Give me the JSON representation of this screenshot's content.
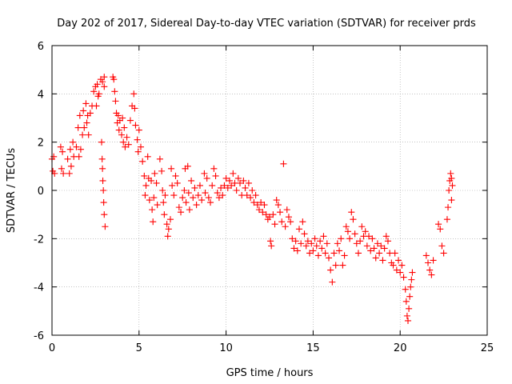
{
  "chart_data": {
    "type": "scatter",
    "title": "Day 202 of 2017, Sidereal Day-to-day VTEC variation (SDTVAR) for receiver prds",
    "xlabel": "GPS time / hours",
    "ylabel": "SDTVAR / TECUs",
    "xlim": [
      0,
      25
    ],
    "ylim": [
      -6,
      6
    ],
    "x_ticks": [
      0,
      5,
      10,
      15,
      20,
      25
    ],
    "y_ticks": [
      -6,
      -4,
      -2,
      0,
      2,
      4,
      6
    ],
    "x_tick_labels": [
      "0",
      "5",
      "10",
      "15",
      "20",
      "25"
    ],
    "y_tick_labels": [
      "-6",
      "-4",
      "-2",
      "0",
      "2",
      "4",
      "6"
    ],
    "grid": true,
    "marker": "+",
    "marker_color": "#ff0000",
    "series": [
      {
        "name": "SDTVAR",
        "points": [
          [
            0.0,
            1.3
          ],
          [
            0.05,
            0.8
          ],
          [
            0.1,
            1.4
          ],
          [
            0.15,
            0.7
          ],
          [
            0.5,
            1.8
          ],
          [
            0.55,
            0.9
          ],
          [
            0.6,
            1.6
          ],
          [
            0.65,
            0.7
          ],
          [
            0.9,
            1.3
          ],
          [
            1.0,
            0.7
          ],
          [
            1.05,
            1.7
          ],
          [
            1.1,
            1.0
          ],
          [
            1.2,
            2.0
          ],
          [
            1.25,
            1.4
          ],
          [
            1.4,
            1.8
          ],
          [
            1.5,
            2.6
          ],
          [
            1.55,
            1.4
          ],
          [
            1.6,
            3.1
          ],
          [
            1.65,
            1.7
          ],
          [
            1.75,
            2.3
          ],
          [
            1.8,
            3.3
          ],
          [
            1.85,
            2.6
          ],
          [
            1.95,
            3.6
          ],
          [
            2.0,
            2.8
          ],
          [
            2.05,
            3.1
          ],
          [
            2.1,
            2.3
          ],
          [
            2.2,
            3.2
          ],
          [
            2.3,
            3.5
          ],
          [
            2.4,
            4.1
          ],
          [
            2.5,
            4.3
          ],
          [
            2.55,
            3.5
          ],
          [
            2.6,
            4.4
          ],
          [
            2.65,
            3.9
          ],
          [
            2.7,
            4.0
          ],
          [
            2.8,
            4.6
          ],
          [
            2.9,
            4.5
          ],
          [
            3.0,
            4.7
          ],
          [
            3.0,
            4.3
          ],
          [
            2.85,
            2.0
          ],
          [
            2.88,
            1.3
          ],
          [
            2.9,
            0.9
          ],
          [
            2.92,
            0.4
          ],
          [
            2.95,
            0.0
          ],
          [
            2.97,
            -0.5
          ],
          [
            3.0,
            -1.0
          ],
          [
            3.05,
            -1.5
          ],
          [
            3.5,
            4.7
          ],
          [
            3.55,
            4.6
          ],
          [
            3.6,
            4.1
          ],
          [
            3.65,
            3.7
          ],
          [
            3.7,
            3.2
          ],
          [
            3.75,
            2.8
          ],
          [
            3.8,
            3.1
          ],
          [
            3.85,
            2.5
          ],
          [
            3.9,
            2.9
          ],
          [
            4.0,
            2.3
          ],
          [
            4.05,
            3.0
          ],
          [
            4.1,
            2.0
          ],
          [
            4.15,
            2.6
          ],
          [
            4.2,
            1.8
          ],
          [
            4.3,
            2.2
          ],
          [
            4.4,
            1.9
          ],
          [
            4.5,
            2.9
          ],
          [
            4.6,
            3.5
          ],
          [
            4.7,
            4.0
          ],
          [
            4.75,
            3.4
          ],
          [
            4.8,
            2.7
          ],
          [
            4.9,
            2.1
          ],
          [
            4.95,
            1.6
          ],
          [
            5.0,
            2.5
          ],
          [
            5.1,
            1.8
          ],
          [
            5.2,
            1.2
          ],
          [
            5.3,
            0.6
          ],
          [
            5.35,
            -0.2
          ],
          [
            5.4,
            0.2
          ],
          [
            5.5,
            1.4
          ],
          [
            5.55,
            0.5
          ],
          [
            5.6,
            -0.4
          ],
          [
            5.7,
            0.4
          ],
          [
            5.75,
            -0.8
          ],
          [
            5.8,
            -1.3
          ],
          [
            5.85,
            -0.3
          ],
          [
            5.9,
            0.7
          ],
          [
            6.0,
            0.3
          ],
          [
            6.05,
            -0.6
          ],
          [
            6.2,
            1.3
          ],
          [
            6.3,
            0.8
          ],
          [
            6.35,
            0.0
          ],
          [
            6.4,
            -0.5
          ],
          [
            6.45,
            -1.0
          ],
          [
            6.5,
            -0.2
          ],
          [
            6.6,
            -1.4
          ],
          [
            6.65,
            -1.9
          ],
          [
            6.7,
            -1.6
          ],
          [
            6.8,
            -1.2
          ],
          [
            6.85,
            0.9
          ],
          [
            6.9,
            0.2
          ],
          [
            7.0,
            -0.2
          ],
          [
            7.1,
            0.6
          ],
          [
            7.2,
            0.3
          ],
          [
            7.3,
            -0.7
          ],
          [
            7.4,
            -0.9
          ],
          [
            7.5,
            -0.3
          ],
          [
            7.6,
            0.0
          ],
          [
            7.65,
            0.9
          ],
          [
            7.7,
            -0.5
          ],
          [
            7.8,
            1.0
          ],
          [
            7.85,
            -0.1
          ],
          [
            7.9,
            -0.8
          ],
          [
            8.0,
            0.4
          ],
          [
            8.1,
            -0.3
          ],
          [
            8.2,
            0.1
          ],
          [
            8.3,
            -0.6
          ],
          [
            8.4,
            -0.2
          ],
          [
            8.5,
            0.2
          ],
          [
            8.6,
            -0.4
          ],
          [
            8.75,
            0.7
          ],
          [
            8.8,
            -0.1
          ],
          [
            8.9,
            0.5
          ],
          [
            9.0,
            -0.3
          ],
          [
            9.1,
            -0.5
          ],
          [
            9.2,
            0.2
          ],
          [
            9.3,
            0.9
          ],
          [
            9.4,
            0.6
          ],
          [
            9.5,
            -0.1
          ],
          [
            9.6,
            -0.3
          ],
          [
            9.7,
            0.1
          ],
          [
            9.8,
            -0.2
          ],
          [
            9.9,
            0.2
          ],
          [
            10.0,
            0.5
          ],
          [
            10.1,
            0.1
          ],
          [
            10.2,
            0.4
          ],
          [
            10.3,
            0.2
          ],
          [
            10.4,
            0.7
          ],
          [
            10.5,
            0.3
          ],
          [
            10.6,
            0.0
          ],
          [
            10.7,
            0.5
          ],
          [
            10.8,
            0.3
          ],
          [
            10.9,
            -0.2
          ],
          [
            11.0,
            0.4
          ],
          [
            11.1,
            0.1
          ],
          [
            11.2,
            -0.2
          ],
          [
            11.3,
            0.3
          ],
          [
            11.4,
            -0.3
          ],
          [
            11.5,
            0.0
          ],
          [
            11.6,
            -0.5
          ],
          [
            11.7,
            -0.2
          ],
          [
            11.8,
            -0.6
          ],
          [
            11.9,
            -0.8
          ],
          [
            12.0,
            -0.5
          ],
          [
            12.1,
            -0.9
          ],
          [
            12.2,
            -0.6
          ],
          [
            12.3,
            -1.0
          ],
          [
            12.4,
            -1.2
          ],
          [
            12.5,
            -1.1
          ],
          [
            12.55,
            -2.1
          ],
          [
            12.6,
            -2.3
          ],
          [
            12.7,
            -1.0
          ],
          [
            12.8,
            -1.4
          ],
          [
            12.9,
            -0.4
          ],
          [
            13.0,
            -0.6
          ],
          [
            13.1,
            -0.9
          ],
          [
            13.2,
            -1.3
          ],
          [
            13.3,
            1.1
          ],
          [
            13.4,
            -1.5
          ],
          [
            13.5,
            -0.8
          ],
          [
            13.6,
            -1.1
          ],
          [
            13.7,
            -1.3
          ],
          [
            13.8,
            -2.0
          ],
          [
            13.9,
            -2.4
          ],
          [
            14.0,
            -2.1
          ],
          [
            14.1,
            -2.5
          ],
          [
            14.2,
            -1.6
          ],
          [
            14.3,
            -2.2
          ],
          [
            14.4,
            -1.3
          ],
          [
            14.5,
            -1.8
          ],
          [
            14.6,
            -2.3
          ],
          [
            14.7,
            -2.1
          ],
          [
            14.8,
            -2.6
          ],
          [
            14.9,
            -2.2
          ],
          [
            15.0,
            -2.5
          ],
          [
            15.1,
            -2.0
          ],
          [
            15.2,
            -2.3
          ],
          [
            15.3,
            -2.7
          ],
          [
            15.4,
            -2.1
          ],
          [
            15.5,
            -2.4
          ],
          [
            15.6,
            -1.9
          ],
          [
            15.7,
            -2.6
          ],
          [
            15.8,
            -2.2
          ],
          [
            15.9,
            -2.8
          ],
          [
            16.0,
            -3.3
          ],
          [
            16.1,
            -3.8
          ],
          [
            16.2,
            -2.6
          ],
          [
            16.3,
            -3.1
          ],
          [
            16.4,
            -2.2
          ],
          [
            16.5,
            -2.5
          ],
          [
            16.6,
            -2.0
          ],
          [
            16.7,
            -3.1
          ],
          [
            16.8,
            -2.7
          ],
          [
            16.9,
            -1.5
          ],
          [
            17.0,
            -1.7
          ],
          [
            17.1,
            -2.0
          ],
          [
            17.2,
            -0.9
          ],
          [
            17.3,
            -1.2
          ],
          [
            17.4,
            -1.8
          ],
          [
            17.5,
            -2.2
          ],
          [
            17.6,
            -2.6
          ],
          [
            17.7,
            -2.1
          ],
          [
            17.8,
            -1.5
          ],
          [
            17.9,
            -1.9
          ],
          [
            18.0,
            -1.7
          ],
          [
            18.1,
            -2.3
          ],
          [
            18.2,
            -1.9
          ],
          [
            18.3,
            -2.5
          ],
          [
            18.4,
            -2.0
          ],
          [
            18.5,
            -2.4
          ],
          [
            18.6,
            -2.8
          ],
          [
            18.7,
            -2.2
          ],
          [
            18.8,
            -2.6
          ],
          [
            18.9,
            -2.3
          ],
          [
            19.0,
            -2.9
          ],
          [
            19.1,
            -2.4
          ],
          [
            19.2,
            -1.9
          ],
          [
            19.3,
            -2.1
          ],
          [
            19.4,
            -2.6
          ],
          [
            19.5,
            -3.0
          ],
          [
            19.6,
            -3.1
          ],
          [
            19.7,
            -2.6
          ],
          [
            19.8,
            -3.3
          ],
          [
            19.9,
            -2.9
          ],
          [
            20.0,
            -3.4
          ],
          [
            20.1,
            -3.1
          ],
          [
            20.2,
            -3.6
          ],
          [
            20.3,
            -4.1
          ],
          [
            20.35,
            -4.6
          ],
          [
            20.4,
            -5.2
          ],
          [
            20.45,
            -5.4
          ],
          [
            20.5,
            -4.9
          ],
          [
            20.55,
            -4.4
          ],
          [
            20.6,
            -4.0
          ],
          [
            20.65,
            -3.7
          ],
          [
            20.7,
            -3.4
          ],
          [
            21.5,
            -2.7
          ],
          [
            21.6,
            -3.0
          ],
          [
            21.7,
            -3.3
          ],
          [
            21.8,
            -3.5
          ],
          [
            21.9,
            -2.9
          ],
          [
            22.2,
            -1.4
          ],
          [
            22.3,
            -1.6
          ],
          [
            22.4,
            -2.3
          ],
          [
            22.5,
            -2.6
          ],
          [
            22.7,
            -1.2
          ],
          [
            22.75,
            -0.7
          ],
          [
            22.8,
            0.0
          ],
          [
            22.85,
            0.4
          ],
          [
            22.9,
            0.7
          ],
          [
            22.95,
            0.5
          ],
          [
            23.0,
            0.2
          ],
          [
            22.95,
            -0.4
          ]
        ]
      }
    ]
  }
}
